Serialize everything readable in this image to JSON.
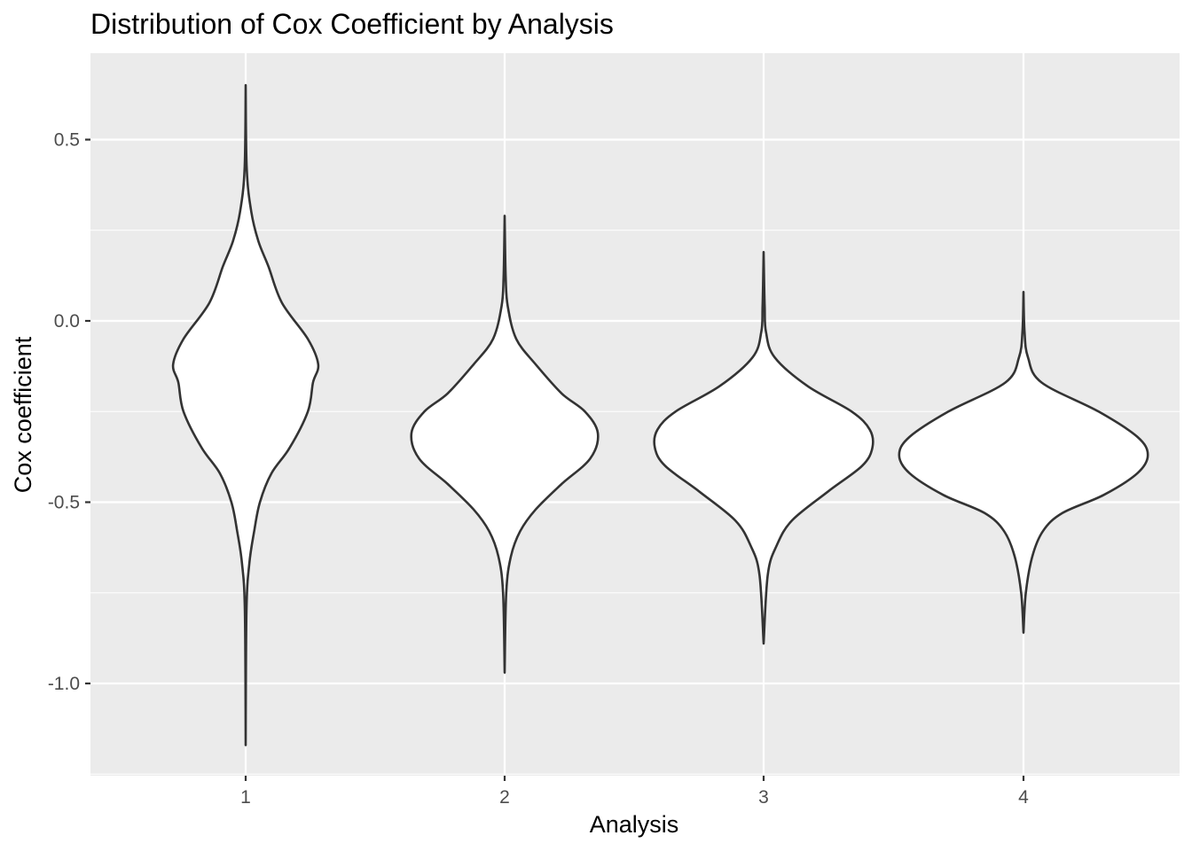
{
  "chart_data": {
    "type": "violin",
    "title": "Distribution of Cox Coefficient by Analysis",
    "xlabel": "Analysis",
    "ylabel": "Cox coefficient",
    "categories": [
      "1",
      "2",
      "3",
      "4"
    ],
    "y_ticks": [
      {
        "value": 0.5,
        "label": "0.5"
      },
      {
        "value": 0.0,
        "label": "0.0"
      },
      {
        "value": -0.5,
        "label": "-0.5"
      },
      {
        "value": -1.0,
        "label": "-1.0"
      }
    ],
    "ylim": [
      -1.25,
      0.74
    ],
    "grid": true,
    "colors": {
      "panel": "#ebebeb",
      "grid": "#ffffff",
      "violin_fill": "#ffffff",
      "violin_stroke": "#333333",
      "tick_text": "#4d4d4d"
    },
    "violins": [
      {
        "category": "1",
        "min": -1.17,
        "max": 0.65,
        "profile": [
          [
            0.65,
            0.0
          ],
          [
            0.42,
            0.004
          ],
          [
            0.3,
            0.022
          ],
          [
            0.22,
            0.049
          ],
          [
            0.15,
            0.088
          ],
          [
            0.05,
            0.14
          ],
          [
            -0.05,
            0.24
          ],
          [
            -0.12,
            0.28
          ],
          [
            -0.17,
            0.26
          ],
          [
            -0.25,
            0.24
          ],
          [
            -0.35,
            0.17
          ],
          [
            -0.42,
            0.1
          ],
          [
            -0.5,
            0.055
          ],
          [
            -0.58,
            0.033
          ],
          [
            -0.67,
            0.014
          ],
          [
            -0.8,
            0.003
          ],
          [
            -1.17,
            0.0
          ]
        ]
      },
      {
        "category": "2",
        "min": -0.97,
        "max": 0.29,
        "profile": [
          [
            0.29,
            0.0
          ],
          [
            0.12,
            0.004
          ],
          [
            0.04,
            0.012
          ],
          [
            -0.05,
            0.045
          ],
          [
            -0.12,
            0.12
          ],
          [
            -0.2,
            0.22
          ],
          [
            -0.25,
            0.31
          ],
          [
            -0.31,
            0.36
          ],
          [
            -0.38,
            0.33
          ],
          [
            -0.45,
            0.22
          ],
          [
            -0.52,
            0.12
          ],
          [
            -0.58,
            0.06
          ],
          [
            -0.65,
            0.024
          ],
          [
            -0.75,
            0.006
          ],
          [
            -0.97,
            0.0
          ]
        ]
      },
      {
        "category": "3",
        "min": -0.89,
        "max": 0.19,
        "profile": [
          [
            0.19,
            0.0
          ],
          [
            0.04,
            0.004
          ],
          [
            -0.03,
            0.009
          ],
          [
            -0.1,
            0.042
          ],
          [
            -0.18,
            0.17
          ],
          [
            -0.25,
            0.34
          ],
          [
            -0.3,
            0.41
          ],
          [
            -0.35,
            0.42
          ],
          [
            -0.4,
            0.38
          ],
          [
            -0.47,
            0.25
          ],
          [
            -0.55,
            0.11
          ],
          [
            -0.62,
            0.05
          ],
          [
            -0.7,
            0.016
          ],
          [
            -0.89,
            0.0
          ]
        ]
      },
      {
        "category": "4",
        "min": -0.86,
        "max": 0.08,
        "profile": [
          [
            0.08,
            0.0
          ],
          [
            -0.03,
            0.004
          ],
          [
            -0.1,
            0.017
          ],
          [
            -0.17,
            0.07
          ],
          [
            -0.25,
            0.29
          ],
          [
            -0.32,
            0.44
          ],
          [
            -0.37,
            0.48
          ],
          [
            -0.42,
            0.44
          ],
          [
            -0.48,
            0.31
          ],
          [
            -0.53,
            0.15
          ],
          [
            -0.58,
            0.075
          ],
          [
            -0.65,
            0.034
          ],
          [
            -0.75,
            0.009
          ],
          [
            -0.86,
            0.0
          ]
        ]
      }
    ]
  }
}
